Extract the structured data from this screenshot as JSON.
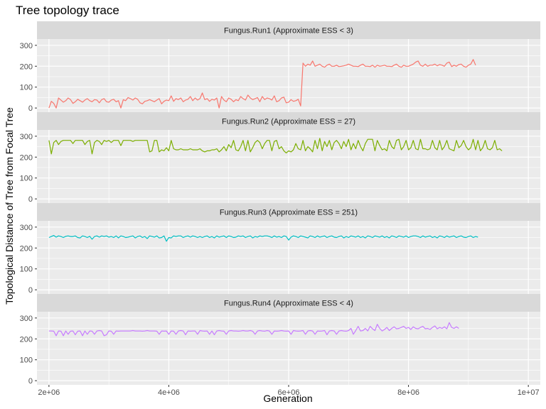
{
  "chart_data": {
    "type": "line",
    "title": "Tree topology trace",
    "xlabel": "Generation",
    "ylabel": "Topological Distance of Tree from Focal Tree",
    "xlim": [
      1800000,
      10200000
    ],
    "ylim": [
      -20,
      330
    ],
    "x_ticks": [
      2000000,
      4000000,
      6000000,
      8000000,
      10000000
    ],
    "x_tick_labels": [
      "2e+06",
      "4e+06",
      "6e+06",
      "8e+06",
      "1e+07"
    ],
    "y_ticks": [
      0,
      100,
      200,
      300
    ],
    "y_tick_labels": [
      "0",
      "100",
      "200",
      "300"
    ],
    "x_start": 2000000,
    "x_step": 40000,
    "grid": true,
    "panels": [
      {
        "title": "Fungus.Run1 (Approximate ESS < 3)",
        "color": "#F8766D",
        "values": [
          0,
          32,
          22,
          0,
          48,
          38,
          28,
          35,
          48,
          40,
          22,
          30,
          42,
          35,
          28,
          38,
          45,
          35,
          30,
          40,
          38,
          25,
          40,
          45,
          30,
          28,
          38,
          42,
          30,
          35,
          0,
          40,
          35,
          50,
          45,
          38,
          48,
          42,
          25,
          20,
          32,
          35,
          40,
          35,
          30,
          38,
          45,
          20,
          32,
          38,
          35,
          58,
          32,
          45,
          40,
          48,
          30,
          38,
          42,
          55,
          35,
          48,
          38,
          45,
          72,
          40,
          45,
          32,
          42,
          38,
          48,
          0,
          55,
          38,
          30,
          48,
          42,
          30,
          40,
          35,
          55,
          45,
          38,
          62,
          48,
          40,
          45,
          50,
          30,
          55,
          40,
          48,
          45,
          38,
          58,
          30,
          35,
          48,
          52,
          25,
          28,
          40,
          32,
          35,
          42,
          10,
          215,
          200,
          210,
          205,
          225,
          200,
          205,
          210,
          200,
          195,
          205,
          210,
          200,
          200,
          205,
          198,
          200,
          202,
          205,
          210,
          205,
          200,
          200,
          198,
          205,
          210,
          200,
          200,
          198,
          205,
          195,
          205,
          200,
          202,
          205,
          200,
          200,
          198,
          205,
          210,
          200,
          195,
          205,
          200,
          200,
          205,
          210,
          220,
          225,
          205,
          200,
          210,
          200,
          205,
          205,
          210,
          202,
          208,
          205,
          200,
          215,
          220,
          198,
          205,
          200,
          208,
          210,
          200,
          195,
          205,
          210,
          232,
          205
        ]
      },
      {
        "title": "Fungus.Run2 (Approximate ESS = 27)",
        "color": "#7CAE00",
        "values": [
          280,
          215,
          270,
          280,
          260,
          275,
          280,
          280,
          280,
          280,
          265,
          280,
          280,
          280,
          280,
          260,
          275,
          280,
          215,
          270,
          280,
          275,
          260,
          280,
          275,
          280,
          270,
          280,
          280,
          280,
          255,
          280,
          280,
          280,
          280,
          275,
          280,
          280,
          280,
          280,
          280,
          280,
          225,
          230,
          280,
          280,
          225,
          235,
          230,
          245,
          230,
          280,
          240,
          235,
          235,
          240,
          235,
          235,
          235,
          240,
          235,
          235,
          235,
          240,
          230,
          225,
          230,
          230,
          235,
          235,
          240,
          225,
          235,
          250,
          230,
          260,
          245,
          280,
          235,
          230,
          250,
          280,
          230,
          280,
          225,
          245,
          270,
          280,
          270,
          240,
          265,
          280,
          280,
          230,
          275,
          280,
          240,
          250,
          230,
          220,
          230,
          225,
          235,
          265,
          240,
          235,
          280,
          230,
          250,
          240,
          225,
          280,
          240,
          290,
          230,
          275,
          250,
          280,
          235,
          270,
          280,
          265,
          240,
          275,
          250,
          285,
          235,
          265,
          240,
          280,
          250,
          230,
          265,
          285,
          285,
          285,
          230,
          280,
          255,
          235,
          240,
          230,
          280,
          250,
          240,
          280,
          285,
          235,
          250,
          280,
          235,
          245,
          280,
          240,
          235,
          285,
          240,
          240,
          235,
          240,
          280,
          245,
          235,
          280,
          235,
          250,
          280,
          240,
          235,
          230,
          280,
          245,
          255,
          280,
          250,
          235,
          245,
          285,
          235,
          280,
          230,
          245,
          280,
          240,
          235,
          245,
          280,
          235,
          240,
          230
        ]
      },
      {
        "title": "Fungus.Run3 (Approximate ESS = 251)",
        "color": "#00BFC4",
        "values": [
          250,
          255,
          260,
          252,
          258,
          255,
          250,
          256,
          258,
          255,
          255,
          258,
          250,
          248,
          258,
          255,
          250,
          256,
          242,
          255,
          258,
          252,
          258,
          255,
          258,
          252,
          255,
          250,
          258,
          248,
          258,
          255,
          250,
          252,
          255,
          258,
          248,
          255,
          258,
          250,
          255,
          245,
          258,
          255,
          252,
          258,
          248,
          250,
          258,
          232,
          250,
          248,
          258,
          255,
          258,
          258,
          250,
          255,
          258,
          252,
          258,
          255,
          250,
          255,
          250,
          255,
          258,
          250,
          255,
          248,
          258,
          252,
          255,
          258,
          250,
          258,
          255,
          250,
          252,
          258,
          255,
          258,
          250,
          255,
          258,
          248,
          255,
          252,
          258,
          255,
          258,
          258,
          255,
          250,
          258,
          252,
          255,
          250,
          258,
          255,
          238,
          252,
          258,
          255,
          250,
          258,
          255,
          252,
          248,
          258,
          255,
          250,
          258,
          252,
          255,
          258,
          250,
          255,
          258,
          252,
          250,
          255,
          258,
          248,
          255,
          250,
          258,
          255,
          252,
          258,
          250,
          255,
          248,
          258,
          255,
          250,
          258,
          255,
          252,
          258,
          250,
          255,
          248,
          258,
          255,
          250,
          258,
          255,
          252,
          258,
          250,
          255,
          258,
          258,
          255,
          250,
          258,
          252,
          255,
          258,
          250,
          255,
          248,
          258,
          255,
          250,
          258,
          252,
          255,
          258,
          250,
          255,
          258,
          252,
          250,
          255,
          258,
          250,
          255,
          252
        ]
      },
      {
        "title": "Fungus.Run4 (Approximate ESS < 4)",
        "color": "#C77CFF",
        "values": [
          238,
          238,
          237,
          215,
          238,
          237,
          215,
          238,
          222,
          237,
          238,
          220,
          237,
          238,
          215,
          238,
          222,
          238,
          237,
          222,
          238,
          240,
          238,
          215,
          220,
          238,
          237,
          222,
          238,
          237,
          238,
          238,
          238,
          238,
          238,
          240,
          238,
          238,
          238,
          237,
          238,
          240,
          238,
          238,
          238,
          237,
          222,
          238,
          237,
          238,
          222,
          238,
          237,
          222,
          238,
          240,
          238,
          220,
          238,
          237,
          238,
          238,
          222,
          240,
          238,
          237,
          238,
          222,
          238,
          220,
          238,
          240,
          238,
          237,
          222,
          238,
          240,
          238,
          238,
          237,
          238,
          240,
          238,
          238,
          240,
          237,
          222,
          238,
          240,
          238,
          237,
          240,
          238,
          222,
          238,
          237,
          238,
          240,
          238,
          237,
          238,
          222,
          240,
          238,
          237,
          238,
          240,
          222,
          238,
          240,
          238,
          222,
          238,
          237,
          238,
          240,
          220,
          238,
          240,
          238,
          222,
          238,
          240,
          238,
          237,
          240,
          250,
          222,
          240,
          260,
          238,
          240,
          250,
          238,
          260,
          248,
          240,
          270,
          250,
          238,
          245,
          255,
          240,
          250,
          258,
          248,
          250,
          255,
          260,
          250,
          255,
          245,
          258,
          250,
          248,
          255,
          260,
          248,
          250,
          245,
          255,
          262,
          248,
          255,
          250,
          258,
          248,
          278,
          255,
          250,
          258,
          250
        ]
      }
    ]
  }
}
